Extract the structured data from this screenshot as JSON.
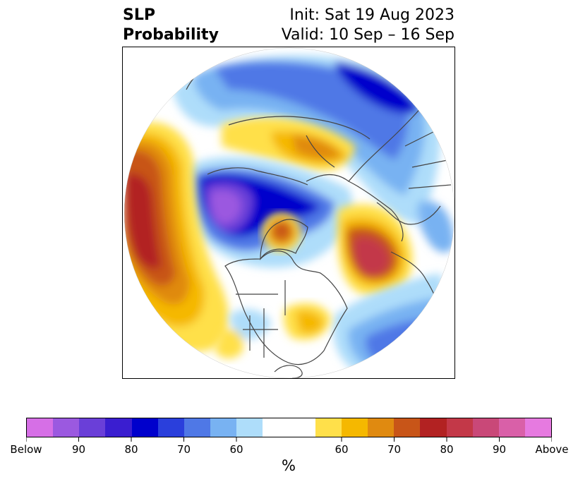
{
  "title": {
    "left_line1": "SLP",
    "left_line2": "Probability",
    "right_line1": "Init: Sat 19 Aug 2023",
    "right_line2": "Valid: 10 Sep – 16 Sep"
  },
  "map": {
    "projection": "north-polar-stereographic",
    "coastline_color": "#444444"
  },
  "colorbar": {
    "unit_label": "%",
    "colors": [
      "#d66fe6",
      "#9b59e0",
      "#6a3fd8",
      "#3a1ed0",
      "#0000cc",
      "#2a3fdc",
      "#4f78e6",
      "#78b2f2",
      "#aeddfa",
      "#ffffff",
      "#ffffff",
      "#ffe04a",
      "#f5b800",
      "#e08a10",
      "#c85518",
      "#b22222",
      "#c33848",
      "#c94878",
      "#d960a8",
      "#e67ae0"
    ],
    "tick_labels": [
      {
        "label": "Below"
      },
      {
        "label": "90"
      },
      {
        "label": "80"
      },
      {
        "label": "70"
      },
      {
        "label": "60"
      },
      {
        "label": "60"
      },
      {
        "label": "70"
      },
      {
        "label": "80"
      },
      {
        "label": "90"
      },
      {
        "label": "Above"
      }
    ]
  }
}
